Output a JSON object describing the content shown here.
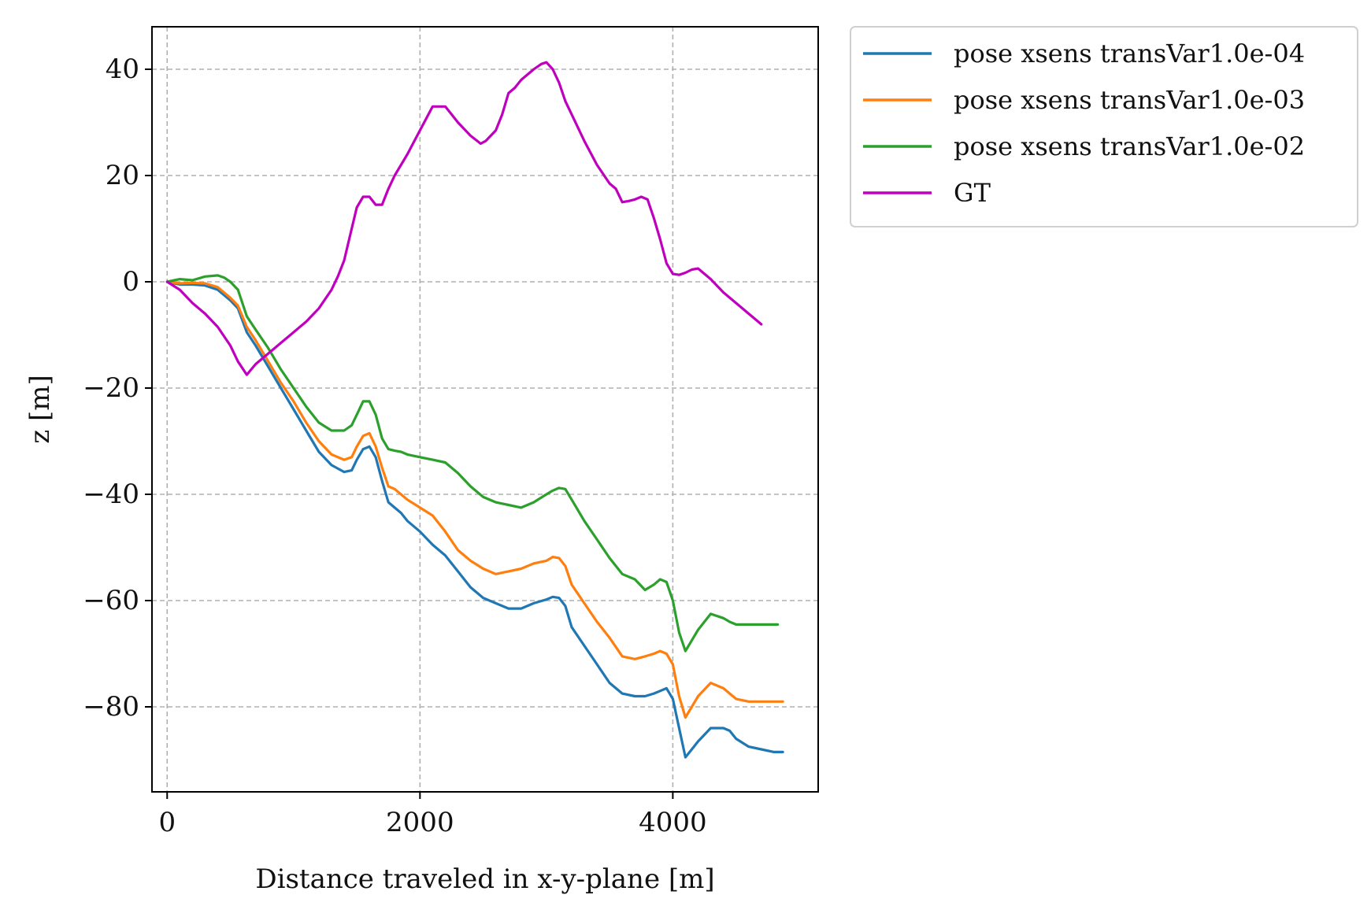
{
  "chart_data": {
    "type": "line",
    "title": "",
    "xlabel": "Distance traveled in x-y-plane [m]",
    "ylabel": "z [m]",
    "xlim": [
      -120,
      5150
    ],
    "ylim": [
      -96,
      48
    ],
    "xticks": [
      0,
      2000,
      4000
    ],
    "xtick_labels": [
      "0",
      "2000",
      "4000"
    ],
    "yticks": [
      -80,
      -60,
      -40,
      -20,
      0,
      20,
      40
    ],
    "ytick_labels": [
      "−80",
      "−60",
      "−40",
      "−20",
      "0",
      "20",
      "40"
    ],
    "grid": true,
    "legend_position": "outside-top-right",
    "series": [
      {
        "name": "pose xsens transVar1.0e-04",
        "color": "#1f77b4",
        "x": [
          0,
          100,
          200,
          300,
          400,
          500,
          560,
          630,
          700,
          800,
          900,
          1000,
          1100,
          1200,
          1300,
          1400,
          1460,
          1500,
          1550,
          1600,
          1650,
          1700,
          1750,
          1800,
          1850,
          1900,
          2000,
          2100,
          2200,
          2300,
          2400,
          2500,
          2600,
          2700,
          2800,
          2900,
          3000,
          3050,
          3100,
          3150,
          3200,
          3300,
          3400,
          3500,
          3600,
          3700,
          3780,
          3850,
          3900,
          3950,
          4000,
          4050,
          4100,
          4150,
          4200,
          4300,
          4400,
          4450,
          4500,
          4600,
          4700,
          4800,
          4870
        ],
        "y": [
          0,
          -0.5,
          -0.5,
          -0.7,
          -1.5,
          -3.5,
          -5,
          -9.5,
          -12,
          -16,
          -20,
          -24,
          -28,
          -32,
          -34.5,
          -35.8,
          -35.5,
          -33.5,
          -31.5,
          -31,
          -33,
          -37.5,
          -41.5,
          -42.5,
          -43.5,
          -45,
          -47,
          -49.5,
          -51.5,
          -54.5,
          -57.5,
          -59.5,
          -60.5,
          -61.5,
          -61.5,
          -60.5,
          -59.8,
          -59.3,
          -59.5,
          -61,
          -65,
          -68.5,
          -72,
          -75.5,
          -77.5,
          -78,
          -78,
          -77.5,
          -77,
          -76.5,
          -78.5,
          -84,
          -89.5,
          -88,
          -86.5,
          -84,
          -84,
          -84.5,
          -86,
          -87.5,
          -88,
          -88.5,
          -88.5
        ]
      },
      {
        "name": "pose xsens transVar1.0e-03",
        "color": "#ff7f0e",
        "x": [
          0,
          100,
          200,
          300,
          400,
          500,
          560,
          630,
          700,
          800,
          900,
          1000,
          1100,
          1200,
          1300,
          1400,
          1460,
          1500,
          1550,
          1600,
          1650,
          1700,
          1750,
          1800,
          1850,
          1900,
          2000,
          2100,
          2200,
          2300,
          2400,
          2500,
          2600,
          2700,
          2800,
          2900,
          3000,
          3050,
          3100,
          3150,
          3200,
          3300,
          3400,
          3500,
          3600,
          3700,
          3780,
          3850,
          3900,
          3950,
          4000,
          4050,
          4100,
          4150,
          4200,
          4300,
          4400,
          4450,
          4500,
          4600,
          4700,
          4800,
          4870
        ],
        "y": [
          0,
          -0.3,
          -0.2,
          -0.3,
          -1,
          -3,
          -4.5,
          -8.5,
          -11,
          -15,
          -19,
          -22.5,
          -26.5,
          -30,
          -32.5,
          -33.5,
          -33,
          -31,
          -29,
          -28.5,
          -31,
          -35,
          -38.5,
          -39,
          -40,
          -41,
          -42.5,
          -44,
          -47,
          -50.5,
          -52.5,
          -54,
          -55,
          -54.5,
          -54,
          -53,
          -52.5,
          -51.8,
          -52,
          -53.5,
          -57,
          -60.5,
          -64,
          -67,
          -70.5,
          -71,
          -70.5,
          -70,
          -69.5,
          -70,
          -72,
          -78,
          -82,
          -80,
          -78,
          -75.5,
          -76.5,
          -77.5,
          -78.5,
          -79,
          -79,
          -79,
          -79
        ]
      },
      {
        "name": "pose xsens transVar1.0e-02",
        "color": "#2ca02c",
        "x": [
          0,
          100,
          200,
          300,
          400,
          450,
          500,
          560,
          630,
          700,
          800,
          900,
          1000,
          1100,
          1200,
          1300,
          1400,
          1460,
          1500,
          1550,
          1600,
          1650,
          1700,
          1750,
          1800,
          1850,
          1900,
          2000,
          2100,
          2200,
          2300,
          2400,
          2500,
          2600,
          2700,
          2800,
          2900,
          3000,
          3050,
          3100,
          3150,
          3200,
          3300,
          3400,
          3500,
          3600,
          3700,
          3780,
          3850,
          3900,
          3950,
          4000,
          4050,
          4100,
          4150,
          4200,
          4300,
          4400,
          4450,
          4500,
          4600,
          4700,
          4800,
          4830
        ],
        "y": [
          0,
          0.5,
          0.3,
          1,
          1.2,
          0.8,
          0,
          -1.5,
          -6.5,
          -9,
          -12.5,
          -16.5,
          -20,
          -23.5,
          -26.5,
          -28,
          -28,
          -27,
          -25,
          -22.5,
          -22.5,
          -25,
          -29.5,
          -31.5,
          -31.8,
          -32,
          -32.5,
          -33,
          -33.5,
          -34,
          -36,
          -38.5,
          -40.5,
          -41.5,
          -42,
          -42.5,
          -41.5,
          -40,
          -39.3,
          -38.8,
          -39,
          -41,
          -45,
          -48.5,
          -52,
          -55,
          -56,
          -58,
          -57,
          -56,
          -56.5,
          -60,
          -66,
          -69.5,
          -67.5,
          -65.5,
          -62.5,
          -63.3,
          -64,
          -64.5,
          -64.5,
          -64.5,
          -64.5,
          -64.5
        ]
      },
      {
        "name": "GT",
        "color": "#bf00bf",
        "x": [
          0,
          100,
          200,
          300,
          400,
          500,
          560,
          630,
          700,
          800,
          900,
          1000,
          1100,
          1200,
          1300,
          1350,
          1400,
          1450,
          1500,
          1550,
          1600,
          1650,
          1700,
          1750,
          1800,
          1900,
          2000,
          2100,
          2200,
          2250,
          2300,
          2400,
          2480,
          2520,
          2560,
          2600,
          2650,
          2700,
          2750,
          2800,
          2900,
          2960,
          3000,
          3050,
          3100,
          3150,
          3200,
          3300,
          3400,
          3500,
          3550,
          3600,
          3650,
          3700,
          3750,
          3800,
          3850,
          3900,
          3950,
          4000,
          4050,
          4100,
          4150,
          4200,
          4250,
          4300,
          4400,
          4500,
          4600,
          4700
        ],
        "y": [
          0,
          -1.5,
          -4,
          -6,
          -8.5,
          -12,
          -15,
          -17.5,
          -15.5,
          -13.5,
          -11.5,
          -9.5,
          -7.5,
          -5,
          -1.5,
          1,
          4,
          9,
          14,
          16,
          16,
          14.5,
          14.5,
          17.5,
          20,
          24,
          28.5,
          33,
          33,
          31.5,
          30,
          27.5,
          26,
          26.5,
          27.5,
          28.5,
          31.5,
          35.5,
          36.5,
          38,
          40,
          41,
          41.3,
          40,
          37.5,
          34,
          31.5,
          26.5,
          22,
          18.5,
          17.5,
          15,
          15.2,
          15.5,
          16,
          15.5,
          12,
          8,
          3.5,
          1.5,
          1.3,
          1.7,
          2.3,
          2.5,
          1.5,
          0.5,
          -2,
          -4,
          -6,
          -8
        ]
      }
    ]
  }
}
